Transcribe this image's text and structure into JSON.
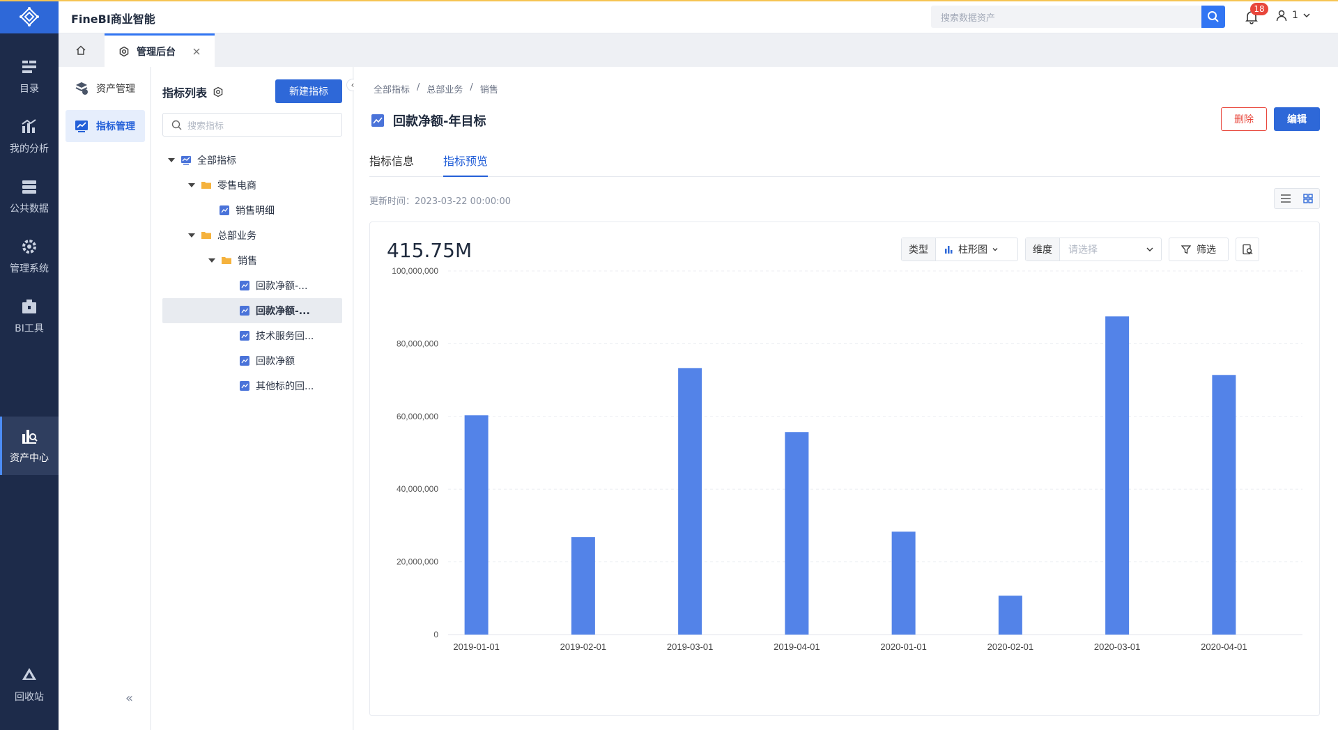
{
  "app": {
    "title": "FineBI商业智能"
  },
  "nav": {
    "items": [
      {
        "label": "目录",
        "icon": "catalog-icon"
      },
      {
        "label": "我的分析",
        "icon": "analysis-icon"
      },
      {
        "label": "公共数据",
        "icon": "data-icon"
      },
      {
        "label": "管理系统",
        "icon": "gear-icon"
      },
      {
        "label": "BI工具",
        "icon": "toolbox-icon"
      },
      {
        "label": "资产中心",
        "icon": "asset-search-icon",
        "active": true
      },
      {
        "label": "回收站",
        "icon": "recycle-icon"
      }
    ]
  },
  "topbar": {
    "search_placeholder": "搜索数据资产",
    "notification_count": "18",
    "user_label": "1"
  },
  "tabs_bar": {
    "admin_tab": "管理后台"
  },
  "sidebar2": {
    "items": [
      {
        "label": "资产管理"
      },
      {
        "label": "指标管理",
        "active": true
      }
    ]
  },
  "list_panel": {
    "title": "指标列表",
    "new_button": "新建指标",
    "search_placeholder": "搜索指标",
    "tree": [
      {
        "label": "全部指标",
        "level": 0,
        "type": "root"
      },
      {
        "label": "零售电商",
        "level": 1,
        "type": "folder"
      },
      {
        "label": "销售明细",
        "level": 2,
        "type": "leaf"
      },
      {
        "label": "总部业务",
        "level": 1,
        "type": "folder"
      },
      {
        "label": "销售",
        "level": 2,
        "type": "folder"
      },
      {
        "label": "回款净额-...",
        "level": 3,
        "type": "leaf"
      },
      {
        "label": "回款净额-...",
        "level": 3,
        "type": "leaf",
        "selected": true
      },
      {
        "label": "技术服务回...",
        "level": 3,
        "type": "leaf"
      },
      {
        "label": "回款净额",
        "level": 3,
        "type": "leaf"
      },
      {
        "label": "其他标的回...",
        "level": 3,
        "type": "leaf"
      }
    ]
  },
  "main": {
    "breadcrumb": [
      "全部指标",
      "/",
      "总部业务",
      "/",
      "销售"
    ],
    "title": "回款净额-年目标",
    "delete_button": "删除",
    "edit_button": "编辑",
    "tabs": [
      {
        "label": "指标信息"
      },
      {
        "label": "指标预览",
        "active": true
      }
    ],
    "update_time": "更新时间：2023-03-22 00:00:00",
    "big_value": "415.75M",
    "controls": {
      "type_label": "类型",
      "type_value": "柱形图",
      "dimension_label": "维度",
      "dimension_placeholder": "请选择",
      "filter_label": "筛选"
    }
  },
  "chart_data": {
    "type": "bar",
    "categories": [
      "2019-01-01",
      "2019-02-01",
      "2019-03-01",
      "2019-04-01",
      "2020-01-01",
      "2020-02-01",
      "2020-03-01",
      "2020-04-01"
    ],
    "values": [
      60300000,
      26800000,
      73300000,
      55700000,
      28300000,
      10700000,
      87500000,
      71400000
    ],
    "yticks": [
      "0",
      "20,000,000",
      "40,000,000",
      "60,000,000",
      "80,000,000",
      "100,000,000"
    ],
    "ylim": [
      0,
      100000000
    ],
    "color": "#5383e8",
    "grid": true
  }
}
